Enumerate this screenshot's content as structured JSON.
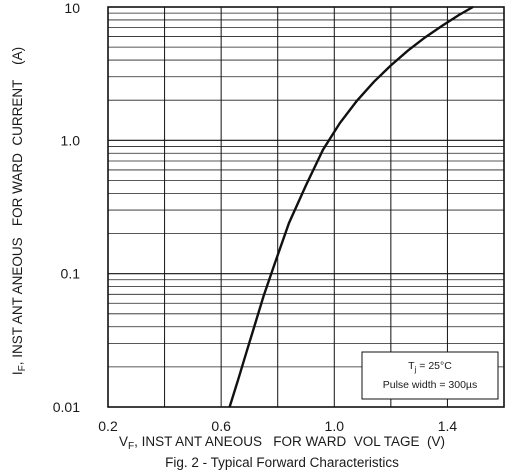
{
  "chart_data": {
    "type": "line",
    "title": "",
    "xlabel": {
      "sym": "V",
      "sub": "F",
      "rest": ", INST ANT ANEOUS   FOR WARD  VOL TAGE  (V)"
    },
    "ylabel": {
      "sym": "I",
      "sub": "F",
      "rest": ", INST ANT ANEOUS   FOR WARD  CURRENT    (A)"
    },
    "caption": "Fig. 2 - Typical Forward Characteristics",
    "x_ticks": [
      "0.2",
      "0.6",
      "1.0",
      "1.4"
    ],
    "y_ticks": [
      "10",
      "1.0",
      "0.1",
      "0.01"
    ],
    "xlim": [
      0.2,
      1.6
    ],
    "ylim": [
      0.01,
      10
    ],
    "y_scale": "log",
    "grid": true,
    "annotation": {
      "line1_sym": "T",
      "line1_sub": "j",
      "line1_rest": " = 25°C",
      "line2": "Pulse  width = 300µs",
      "placement": "bottom-right"
    },
    "series": [
      {
        "x": [
          0.63,
          0.66,
          0.69,
          0.72,
          0.75,
          0.79,
          0.84,
          0.9,
          0.96,
          1.02,
          1.08,
          1.14,
          1.2,
          1.26,
          1.32,
          1.38,
          1.44,
          1.49
        ],
        "y": [
          0.01,
          0.016,
          0.026,
          0.042,
          0.068,
          0.12,
          0.24,
          0.46,
          0.85,
          1.35,
          1.98,
          2.75,
          3.65,
          4.7,
          5.9,
          7.2,
          8.7,
          10.0
        ],
        "color": "#111111"
      }
    ]
  }
}
